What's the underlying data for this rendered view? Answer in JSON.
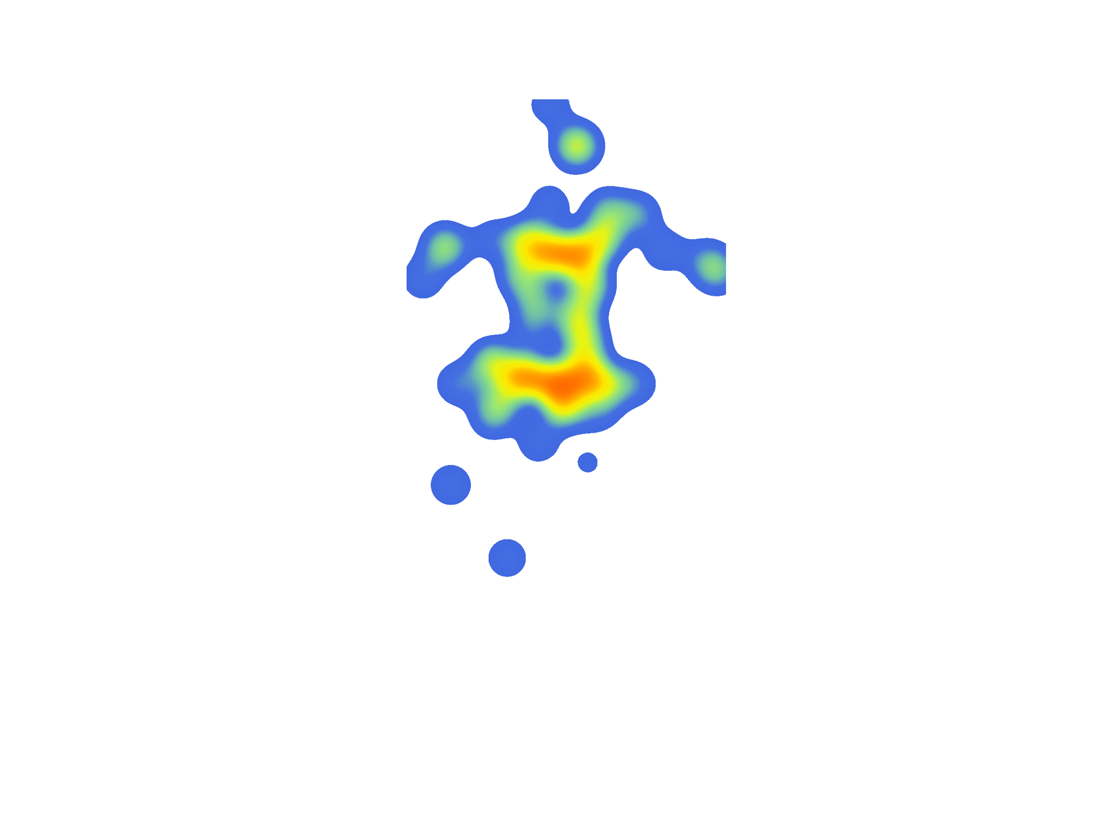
{
  "chart_data": {
    "type": "density",
    "x": [
      49.8,
      52.2,
      49.7,
      44.6,
      47.8,
      50.1,
      52.4,
      54.5,
      55.0,
      57.7,
      47.2,
      53.3,
      48.5,
      52.3,
      48.1,
      52.9,
      44.6,
      47.5,
      50.4,
      52.9,
      51.0,
      54.8,
      41.5,
      57.4,
      44.6,
      54.2,
      48.7,
      53.2,
      40.8,
      45.9,
      40.3,
      38.3,
      60.1,
      64.9,
      63.8,
      45.4
    ],
    "y": [
      12.6,
      17.6,
      24.7,
      28.9,
      29.3,
      30.6,
      30.8,
      28.9,
      25.5,
      25.9,
      33.2,
      34.4,
      36.6,
      38.3,
      40.0,
      41.7,
      43.8,
      45.5,
      46.3,
      45.5,
      48.9,
      46.3,
      46.3,
      46.3,
      50.2,
      49.3,
      53.4,
      55.8,
      58.5,
      67.3,
      29.8,
      33.6,
      30.2,
      32.7,
      31.3,
      48.0
    ],
    "values": [
      0.2,
      0.55,
      0.2,
      0.2,
      0.6,
      0.75,
      0.75,
      0.5,
      0.35,
      0.3,
      0.4,
      0.5,
      0.35,
      0.5,
      0.2,
      0.5,
      0.5,
      0.8,
      0.85,
      0.75,
      0.6,
      0.45,
      0.25,
      0.25,
      0.3,
      0.25,
      0.2,
      0.12,
      0.22,
      0.2,
      0.45,
      0.22,
      0.22,
      0.35,
      0.2,
      0.35
    ],
    "xlim": [
      0,
      100
    ],
    "ylim": [
      100,
      0
    ],
    "tick_labels": false,
    "grid": false
  }
}
